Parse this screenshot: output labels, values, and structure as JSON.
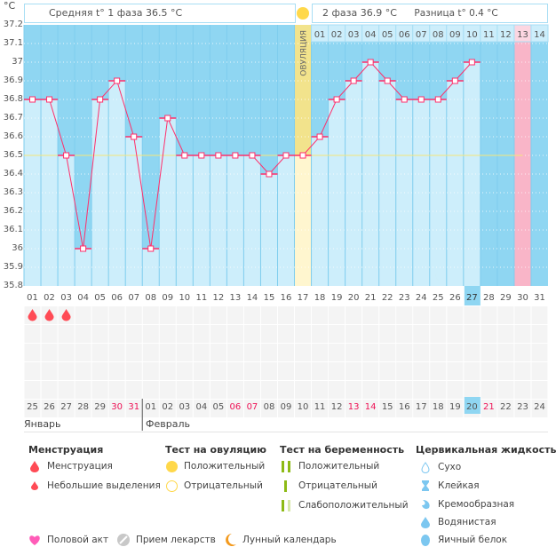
{
  "unit_label": "°C",
  "header": {
    "phase1": "Средняя t° 1 фаза 36.5 °C",
    "phase2": "2 фаза 36.9 °C",
    "difference": "Разница t° 0.4 °C"
  },
  "ovulation_label": "ОВУЛЯЦИЯ",
  "chart_data": {
    "type": "line",
    "ylim": [
      35.8,
      37.2
    ],
    "yticks": [
      "37.2",
      "37.1",
      "37",
      "36.9",
      "36.8",
      "36.7",
      "36.6",
      "36.5",
      "36.4",
      "36.3",
      "36.2",
      "36.1",
      "36",
      "35.9",
      "35.8"
    ],
    "cycle_days": [
      "01",
      "02",
      "03",
      "04",
      "05",
      "06",
      "07",
      "08",
      "09",
      "10",
      "11",
      "12",
      "13",
      "14",
      "15",
      "16",
      "17",
      "18",
      "19",
      "20",
      "21",
      "22",
      "23",
      "24",
      "25",
      "26",
      "27",
      "28",
      "29",
      "30",
      "31"
    ],
    "temperatures": [
      36.8,
      36.8,
      36.5,
      36.0,
      36.8,
      36.9,
      36.6,
      36.0,
      36.7,
      36.5,
      36.5,
      36.5,
      36.5,
      36.5,
      36.4,
      36.5,
      36.5,
      36.6,
      36.8,
      36.9,
      37.0,
      36.9,
      36.8,
      36.8,
      36.8,
      36.9,
      37.0,
      null,
      null,
      null,
      null
    ],
    "average_phase1": 36.5,
    "ovulation_day": 17,
    "phase2_days": [
      "01",
      "02",
      "03",
      "04",
      "05",
      "06",
      "07",
      "08",
      "09",
      "10",
      "11",
      "12",
      "13",
      "14"
    ],
    "expected_period_day": 30,
    "today_cycle_day": 27,
    "moon_day": 25,
    "grid": true
  },
  "menstruation_days": [
    1,
    2,
    3
  ],
  "dates": [
    "25",
    "26",
    "27",
    "28",
    "29",
    "30",
    "31",
    "01",
    "02",
    "03",
    "04",
    "05",
    "06",
    "07",
    "08",
    "09",
    "10",
    "11",
    "12",
    "13",
    "14",
    "15",
    "16",
    "17",
    "18",
    "19",
    "20",
    "21",
    "22",
    "23",
    "24"
  ],
  "weekend_dates_idx": [
    5,
    6,
    12,
    13,
    19,
    20,
    27
  ],
  "months": [
    "Январь",
    "Февраль"
  ],
  "colors": {
    "sky": "#8fd6f2",
    "bar": "#cdeefb",
    "line": "#ff2f6b",
    "ovulation": "#f2e38c",
    "ovulation_low": "#fff6cf",
    "period": "#f9b5c8",
    "drop": "#ff4b55",
    "weekend": "#ee1155",
    "avg": "#f5e77a"
  },
  "legend": {
    "menstruation": {
      "title": "Менструация",
      "items": [
        "Менструация",
        "Небольшие выделения"
      ]
    },
    "ovulation_test": {
      "title": "Тест на овуляцию",
      "items": [
        "Положительный",
        "Отрицательный"
      ]
    },
    "pregnancy_test": {
      "title": "Тест на беременность",
      "items": [
        "Положительный",
        "Отрицательный",
        "Слабоположительный"
      ]
    },
    "cervical": {
      "title": "Цервикальная жидкость",
      "items": [
        "Сухо",
        "Клейкая",
        "Кремообразная",
        "Водянистая",
        "Яичный белок"
      ]
    },
    "other": [
      "Половой акт",
      "Прием лекарств",
      "Лунный календарь"
    ]
  }
}
